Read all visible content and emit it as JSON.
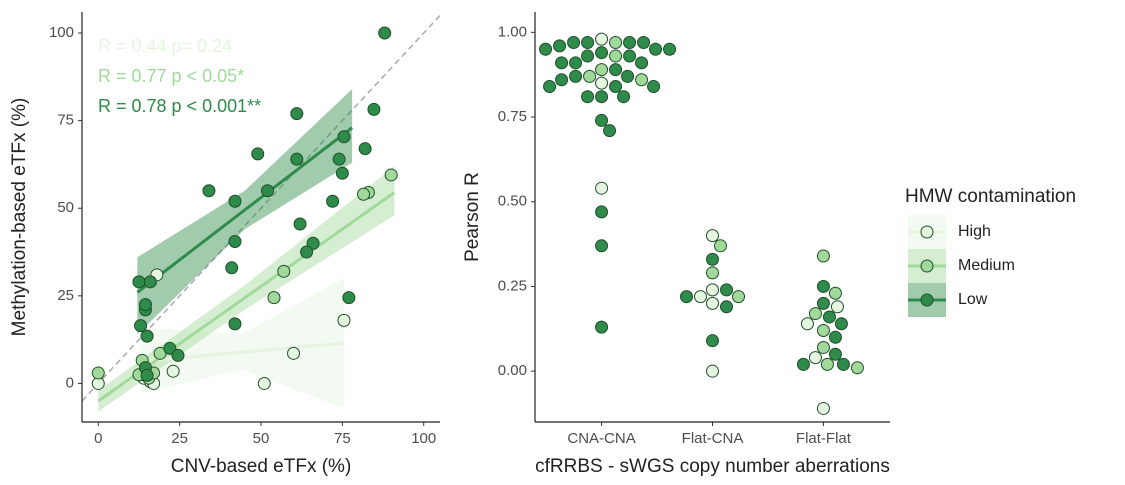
{
  "chart_data": [
    {
      "type": "scatter",
      "x_label": "CNV-based eTFx (%)",
      "y_label": "Methylation-based eTFx (%)",
      "xlim": [
        -5,
        105
      ],
      "ylim": [
        -11,
        106
      ],
      "xticks": [
        0,
        25,
        50,
        75,
        100
      ],
      "yticks": [
        0,
        25,
        50,
        75,
        100
      ],
      "identity_line": true,
      "legend_title": "HMW contamination",
      "series": [
        {
          "name": "High",
          "color": "#e5f5e0",
          "x": [
            0,
            18,
            75.5,
            60,
            51,
            23,
            16,
            14,
            13,
            17
          ],
          "y": [
            0,
            31,
            18,
            8.6,
            0,
            3.5,
            0.5,
            1.5,
            2.5,
            0
          ],
          "fit": {
            "x": [
              13,
              44,
              75.5
            ],
            "y": [
              6.3,
              8.9,
              11.5
            ],
            "lower": [
              -3,
              4,
              -7
            ],
            "upper": [
              16,
              14,
              30
            ]
          },
          "annotation": "R = 0.44 p= 0.24"
        },
        {
          "name": "Medium",
          "color": "#a1d99b",
          "x": [
            0,
            90,
            83,
            81.5,
            57,
            54,
            19,
            13.5,
            12.5,
            15.5,
            17
          ],
          "y": [
            3,
            59.5,
            54.5,
            54,
            32,
            24.5,
            8.6,
            6.6,
            2.5,
            1.5,
            3
          ],
          "fit": {
            "x": [
              0,
              45,
              91
            ],
            "y": [
              -5,
              24.4,
              54.5
            ],
            "lower": [
              -8,
              21,
              48
            ],
            "upper": [
              -2,
              28,
              62
            ]
          },
          "annotation": "R = 0.77 p < 0.05*"
        },
        {
          "name": "Low",
          "color": "#2e8b4a",
          "x": [
            88,
            84.7,
            82,
            75.5,
            74,
            75,
            61,
            61,
            49,
            52,
            34,
            42,
            42,
            41,
            62,
            66,
            64,
            77,
            42,
            72,
            12.5,
            16,
            14.5,
            14.5,
            13,
            15,
            22,
            24.5,
            14.5,
            15
          ],
          "y": [
            100,
            78.2,
            67,
            70.4,
            64,
            60,
            64,
            77,
            65.5,
            55,
            55,
            52,
            40.5,
            33,
            45.5,
            40,
            37.5,
            24.5,
            17,
            52,
            29,
            29,
            21,
            22.5,
            16.5,
            13.5,
            10,
            8,
            4.5,
            2.3
          ],
          "fit": {
            "x": [
              12,
              45,
              78
            ],
            "y": [
              26,
              49.5,
              73
            ],
            "lower": [
              14,
              44,
              63
            ],
            "upper": [
              36,
              55,
              84
            ]
          },
          "annotation": "R = 0.78 p < 0.001**"
        }
      ]
    },
    {
      "type": "swarm",
      "x_label": "cfRRBS - sWGS copy number aberrations",
      "y_label": "Pearson R",
      "categories": [
        "CNA-CNA",
        "Flat-CNA",
        "Flat-Flat"
      ],
      "ylim": [
        -0.15,
        1.06
      ],
      "yticks": [
        {
          "value": 0,
          "label": "0.00"
        },
        {
          "value": 0.25,
          "label": "0.25"
        },
        {
          "value": 0.5,
          "label": "0.50"
        },
        {
          "value": 0.75,
          "label": "0.75"
        },
        {
          "value": 1,
          "label": "1.00"
        }
      ],
      "series": [
        {
          "color": "#e5f5e0",
          "values": [
            [
              0.98,
              0.85,
              0.54
            ],
            [
              0.4,
              0.24,
              0.22,
              0.2,
              0.0
            ],
            [
              0.19,
              0.14,
              0.04,
              -0.11
            ]
          ]
        },
        {
          "color": "#a1d99b",
          "values": [
            [
              0.97,
              0.93,
              0.89,
              0.87,
              0.86
            ],
            [
              0.37,
              0.29,
              0.22
            ],
            [
              0.34,
              0.23,
              0.17,
              0.12,
              0.07,
              0.02,
              0.01
            ]
          ]
        },
        {
          "color": "#2e8b4a",
          "values": [
            [
              0.97,
              0.97,
              0.97,
              0.97,
              0.96,
              0.95,
              0.95,
              0.95,
              0.94,
              0.93,
              0.93,
              0.91,
              0.91,
              0.91,
              0.89,
              0.87,
              0.87,
              0.86,
              0.84,
              0.84,
              0.84,
              0.81,
              0.81,
              0.81,
              0.74,
              0.71,
              0.47,
              0.37,
              0.13
            ],
            [
              0.33,
              0.24,
              0.22,
              0.19,
              0.09
            ],
            [
              0.25,
              0.2,
              0.16,
              0.14,
              0.1,
              0.05,
              0.02,
              0.02
            ]
          ]
        }
      ]
    }
  ]
}
